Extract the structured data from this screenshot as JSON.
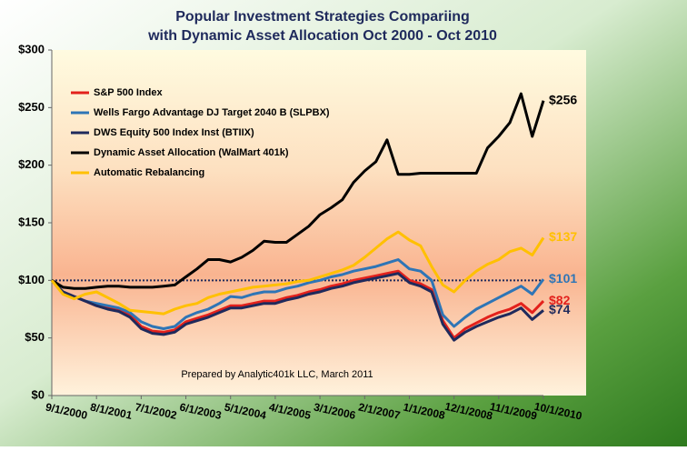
{
  "chart_data": {
    "type": "line",
    "title": [
      "Popular Investment Strategies Compariing",
      "with Dynamic Asset Allocation Oct 2000  - Oct 2010"
    ],
    "annotation": "Prepared by Analytic401k LLC, March 2011",
    "categories": [
      "9/1/2000",
      null,
      null,
      null,
      "8/1/2001",
      null,
      null,
      null,
      "7/1/2002",
      null,
      null,
      null,
      "6/1/2003",
      null,
      null,
      null,
      "5/1/2004",
      null,
      null,
      null,
      "4/1/2005",
      null,
      null,
      null,
      "3/1/2006",
      null,
      null,
      null,
      "2/1/2007",
      null,
      null,
      null,
      "1/1/2008",
      null,
      null,
      null,
      "12/1/2008",
      null,
      null,
      null,
      "11/1/2009",
      null,
      null,
      null,
      "10/1/2010"
    ],
    "series": [
      {
        "name": "S&P 500 Index",
        "color": "#e3211c",
        "values": [
          100,
          90,
          86,
          82,
          78,
          76,
          74,
          70,
          60,
          56,
          55,
          57,
          64,
          67,
          70,
          74,
          78,
          78,
          80,
          82,
          82,
          85,
          87,
          90,
          92,
          95,
          97,
          100,
          102,
          104,
          106,
          108,
          100,
          97,
          92,
          65,
          50,
          58,
          63,
          68,
          72,
          75,
          80,
          72,
          82
        ],
        "end_label": "$82"
      },
      {
        "name": "Wells Fargo Advantage DJ Target 2040 B (SLPBX)",
        "color": "#2e75b6",
        "values": [
          100,
          90,
          86,
          82,
          80,
          78,
          76,
          72,
          64,
          60,
          58,
          60,
          68,
          72,
          75,
          80,
          86,
          85,
          88,
          90,
          90,
          93,
          95,
          98,
          100,
          103,
          105,
          108,
          110,
          112,
          115,
          118,
          110,
          108,
          100,
          70,
          60,
          68,
          75,
          80,
          85,
          90,
          95,
          88,
          101
        ],
        "end_label": "$101"
      },
      {
        "name": "DWS Equity 500 Index Inst (BTIIX)",
        "color": "#1f2a5c",
        "values": [
          100,
          90,
          86,
          82,
          78,
          75,
          73,
          68,
          58,
          54,
          53,
          55,
          62,
          65,
          68,
          72,
          76,
          76,
          78,
          80,
          80,
          83,
          85,
          88,
          90,
          93,
          95,
          98,
          100,
          102,
          104,
          106,
          98,
          95,
          90,
          62,
          48,
          55,
          60,
          64,
          68,
          71,
          76,
          66,
          74
        ],
        "end_label": "$74"
      },
      {
        "name": "Dynamic Asset Allocation (WalMart 401k)",
        "color": "#000000",
        "values": [
          100,
          94,
          93,
          93,
          94,
          95,
          95,
          94,
          94,
          94,
          95,
          96,
          103,
          110,
          118,
          118,
          116,
          120,
          126,
          134,
          133,
          133,
          140,
          147,
          157,
          163,
          170,
          185,
          195,
          203,
          222,
          192,
          192,
          193,
          193,
          193,
          193,
          193,
          193,
          215,
          225,
          237,
          262,
          225,
          256
        ],
        "end_label": "$256"
      },
      {
        "name": "Automatic Rebalancing",
        "color": "#ffc000",
        "values": [
          100,
          88,
          84,
          88,
          90,
          85,
          80,
          74,
          73,
          72,
          71,
          75,
          78,
          80,
          85,
          88,
          90,
          92,
          94,
          95,
          96,
          97,
          99,
          100,
          103,
          106,
          109,
          113,
          120,
          128,
          136,
          142,
          135,
          130,
          112,
          96,
          90,
          100,
          108,
          114,
          118,
          125,
          128,
          122,
          137
        ],
        "end_label": "$137"
      }
    ],
    "reference_line": 100,
    "ylim": [
      0,
      300
    ],
    "yticks": [
      {
        "value": 0,
        "label": "$0"
      },
      {
        "value": 50,
        "label": "$50"
      },
      {
        "value": 100,
        "label": "$100"
      },
      {
        "value": 150,
        "label": "$150"
      },
      {
        "value": 200,
        "label": "$200"
      },
      {
        "value": 250,
        "label": "$250"
      },
      {
        "value": 300,
        "label": "$300"
      }
    ],
    "legend": "top-left"
  }
}
